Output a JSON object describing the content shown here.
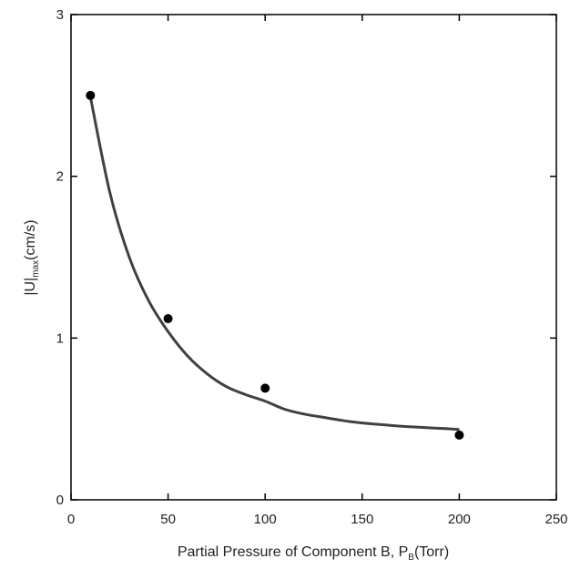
{
  "chart_data": {
    "type": "scatter",
    "title": "",
    "xlabel": {
      "main": "Partial Pressure of Component B, P",
      "sub": "B",
      "tail": "(Torr)"
    },
    "ylabel": {
      "main": "|U|",
      "sub": "max",
      "tail": "(cm/s)"
    },
    "xlim": [
      0,
      250
    ],
    "ylim": [
      0,
      3
    ],
    "x_ticks": [
      0,
      50,
      100,
      150,
      200,
      250
    ],
    "y_ticks": [
      0,
      1,
      2,
      3
    ],
    "grid": false,
    "series": [
      {
        "kind": "points",
        "x": [
          10,
          50,
          100,
          200
        ],
        "y": [
          2.5,
          1.12,
          0.69,
          0.4
        ],
        "color": "#000000"
      },
      {
        "kind": "fit-curve",
        "x": [
          10,
          20,
          30,
          40,
          50,
          60,
          70,
          80,
          90,
          100,
          110,
          120,
          130,
          140,
          150,
          160,
          170,
          180,
          190,
          200
        ],
        "y": [
          2.49,
          1.9,
          1.5,
          1.23,
          1.04,
          0.89,
          0.78,
          0.7,
          0.65,
          0.61,
          0.56,
          0.53,
          0.51,
          0.49,
          0.475,
          0.465,
          0.455,
          0.448,
          0.442,
          0.435
        ],
        "color": "#404040"
      }
    ]
  }
}
